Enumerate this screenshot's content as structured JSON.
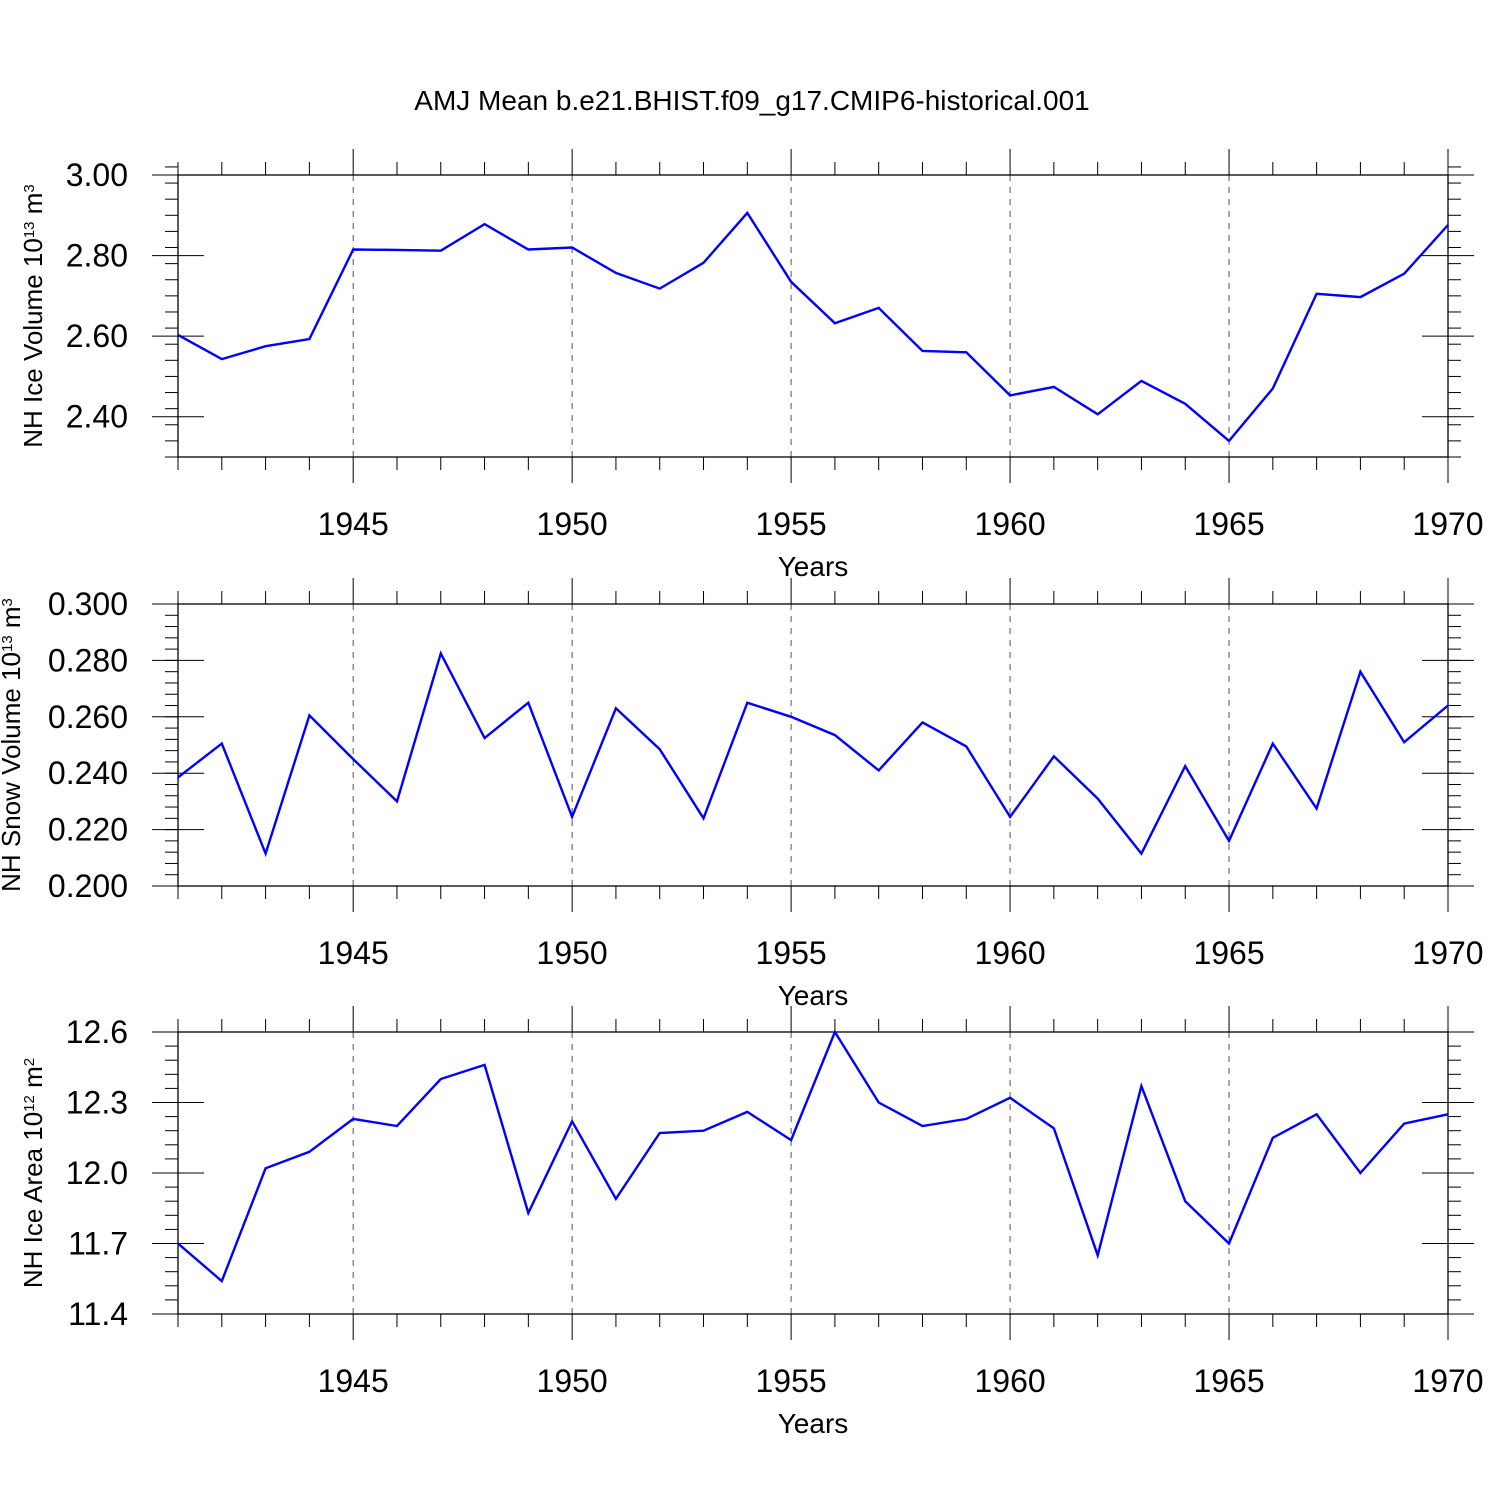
{
  "title": "AMJ Mean b.e21.BHIST.f09_g17.CMIP6-historical.001",
  "chart_data": [
    {
      "type": "line",
      "title": "AMJ Mean b.e21.BHIST.f09_g17.CMIP6-historical.001",
      "xlabel": "Years",
      "ylabel": {
        "prefix": "NH Ice Volume 10",
        "exp": "13",
        "unit": " m",
        "unit_exp": "3"
      },
      "xlim": [
        1941,
        1970
      ],
      "ylim": [
        2.3,
        3.0
      ],
      "xticks": [
        1945,
        1950,
        1955,
        1960,
        1965,
        1970
      ],
      "yticks": [
        3.0,
        2.8,
        2.6,
        2.4
      ],
      "ytick_labels": [
        "3.00",
        "2.80",
        "2.60",
        "2.40"
      ],
      "minor_y_step": 0.04,
      "line_color": "#0000ff",
      "series": [
        {
          "name": "NH Ice Volume",
          "x": [
            1941,
            1942,
            1943,
            1944,
            1945,
            1946,
            1947,
            1948,
            1949,
            1950,
            1951,
            1952,
            1953,
            1954,
            1955,
            1956,
            1957,
            1958,
            1959,
            1960,
            1961,
            1962,
            1963,
            1964,
            1965,
            1966,
            1967,
            1968,
            1969,
            1970
          ],
          "values": [
            2.603,
            2.543,
            2.575,
            2.593,
            2.815,
            2.814,
            2.812,
            2.878,
            2.815,
            2.82,
            2.757,
            2.718,
            2.782,
            2.906,
            2.735,
            2.632,
            2.67,
            2.563,
            2.56,
            2.453,
            2.474,
            2.406,
            2.489,
            2.432,
            2.34,
            2.47,
            2.705,
            2.697,
            2.755,
            2.876
          ]
        }
      ]
    },
    {
      "type": "line",
      "xlabel": "Years",
      "ylabel": {
        "prefix": "NH Snow Volume 10",
        "exp": "13",
        "unit": " m",
        "unit_exp": "3"
      },
      "xlim": [
        1941,
        1970
      ],
      "ylim": [
        0.2,
        0.3
      ],
      "xticks": [
        1945,
        1950,
        1955,
        1960,
        1965,
        1970
      ],
      "yticks": [
        0.3,
        0.28,
        0.26,
        0.24,
        0.22,
        0.2
      ],
      "ytick_labels": [
        "0.300",
        "0.280",
        "0.260",
        "0.240",
        "0.220",
        "0.200"
      ],
      "minor_y_step": 0.004,
      "line_color": "#0000ff",
      "series": [
        {
          "name": "NH Snow Volume",
          "x": [
            1941,
            1942,
            1943,
            1944,
            1945,
            1946,
            1947,
            1948,
            1949,
            1950,
            1951,
            1952,
            1953,
            1954,
            1955,
            1956,
            1957,
            1958,
            1959,
            1960,
            1961,
            1962,
            1963,
            1964,
            1965,
            1966,
            1967,
            1968,
            1969,
            1970
          ],
          "values": [
            0.2385,
            0.2505,
            0.2115,
            0.2605,
            0.245,
            0.23,
            0.2825,
            0.2525,
            0.265,
            0.2245,
            0.263,
            0.2485,
            0.224,
            0.265,
            0.26,
            0.2535,
            0.241,
            0.258,
            0.2495,
            0.2245,
            0.246,
            0.231,
            0.2115,
            0.2425,
            0.216,
            0.2505,
            0.2275,
            0.276,
            0.251,
            0.264
          ]
        }
      ]
    },
    {
      "type": "line",
      "xlabel": "Years",
      "ylabel": {
        "prefix": "NH Ice Area 10",
        "exp": "12",
        "unit": " m",
        "unit_exp": "2"
      },
      "xlim": [
        1941,
        1970
      ],
      "ylim": [
        11.4,
        12.6
      ],
      "xticks": [
        1945,
        1950,
        1955,
        1960,
        1965,
        1970
      ],
      "yticks": [
        12.6,
        12.3,
        12.0,
        11.7,
        11.4
      ],
      "ytick_labels": [
        "12.6",
        "12.3",
        "12.0",
        "11.7",
        "11.4"
      ],
      "minor_y_step": 0.06,
      "line_color": "#0000ff",
      "series": [
        {
          "name": "NH Ice Area",
          "x": [
            1941,
            1942,
            1943,
            1944,
            1945,
            1946,
            1947,
            1948,
            1949,
            1950,
            1951,
            1952,
            1953,
            1954,
            1955,
            1956,
            1957,
            1958,
            1959,
            1960,
            1961,
            1962,
            1963,
            1964,
            1965,
            1966,
            1967,
            1968,
            1969,
            1970
          ],
          "values": [
            11.7,
            11.54,
            12.02,
            12.09,
            12.23,
            12.2,
            12.4,
            12.46,
            11.83,
            12.22,
            11.89,
            12.17,
            12.18,
            12.26,
            12.14,
            12.6,
            12.3,
            12.2,
            12.23,
            12.32,
            12.19,
            11.65,
            12.37,
            11.88,
            11.7,
            12.15,
            12.25,
            12.0,
            12.21,
            12.25
          ]
        }
      ]
    }
  ]
}
